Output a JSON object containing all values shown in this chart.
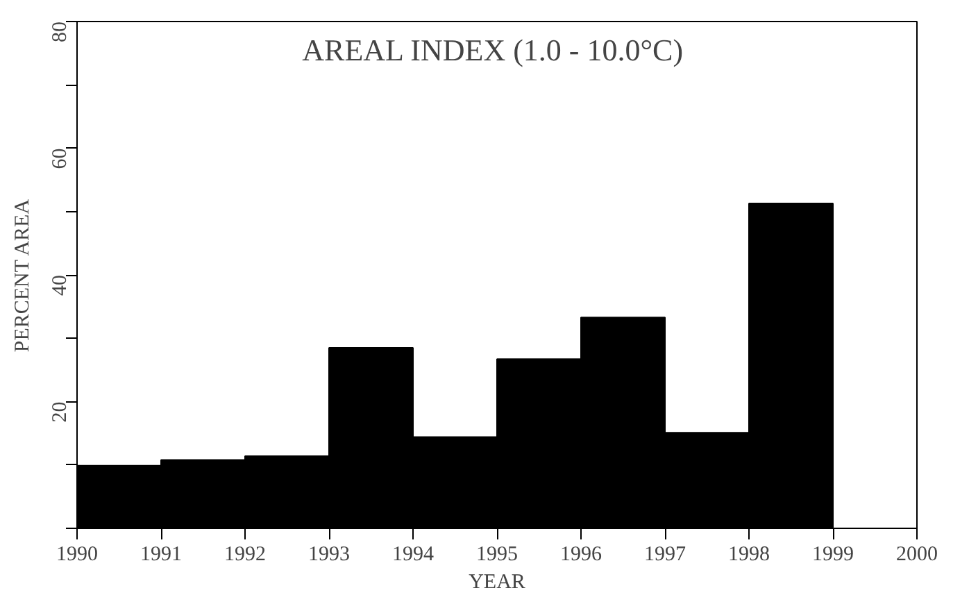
{
  "chart_data": {
    "type": "histogram",
    "title": "AREAL INDEX  (1.0 - 10.0°C)",
    "xlabel": "YEAR",
    "ylabel": "PERCENT AREA",
    "bins": [
      1990,
      1991,
      1992,
      1993,
      1994,
      1995,
      1996,
      1997,
      1998,
      1999,
      2000
    ],
    "values": [
      9.9,
      10.8,
      11.4,
      28.5,
      14.4,
      26.7,
      33.3,
      15.1,
      51.3,
      0
    ],
    "color": "#000000",
    "xlim": [
      1990,
      2000
    ],
    "xticks": [
      1990,
      1991,
      1992,
      1993,
      1994,
      1995,
      1996,
      1997,
      1998,
      1999,
      2000
    ],
    "ylim": [
      0,
      80
    ],
    "yticks": [
      {
        "value": 0,
        "label": null
      },
      {
        "value": 10,
        "label": null
      },
      20,
      {
        "value": 30,
        "label": null
      },
      40,
      {
        "value": 50,
        "label": null
      },
      60,
      {
        "value": 70,
        "label": null
      },
      80
    ],
    "grid": false
  }
}
